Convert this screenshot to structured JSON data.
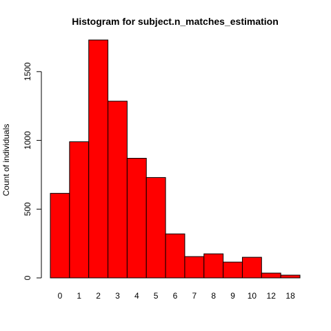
{
  "chart_data": {
    "type": "bar",
    "title": "Histogram for subject.n_matches_estimation",
    "xlabel": "",
    "ylabel": "Count of individuals",
    "categories": [
      "0",
      "1",
      "2",
      "3",
      "4",
      "5",
      "6",
      "7",
      "8",
      "9",
      "10",
      "12",
      "18"
    ],
    "values": [
      615,
      990,
      1730,
      1285,
      870,
      730,
      320,
      155,
      175,
      115,
      150,
      35,
      20
    ],
    "ylim": [
      0,
      1750
    ],
    "yticks": [
      0,
      500,
      1000,
      1500
    ],
    "grid": false,
    "legend": "none",
    "bar_color": "#ff0000",
    "bar_border_color": "#000000"
  }
}
